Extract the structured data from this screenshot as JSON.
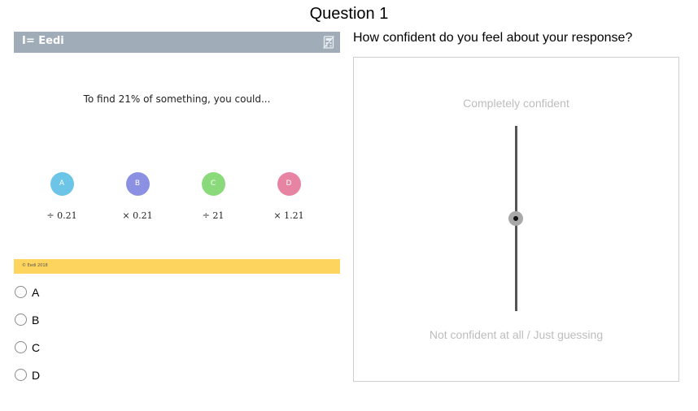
{
  "question_title": "Question 1",
  "card": {
    "brand": "I= Eedi",
    "header_icon": "calculator-crossed-icon",
    "prompt": "To find 21% of something, you could...",
    "options": [
      {
        "letter": "A",
        "expression": "÷ 0.21",
        "color": "#6cc4e6"
      },
      {
        "letter": "B",
        "expression": "× 0.21",
        "color": "#8b90e3"
      },
      {
        "letter": "C",
        "expression": "÷ 21",
        "color": "#8ad97a"
      },
      {
        "letter": "D",
        "expression": "× 1.21",
        "color": "#e784a4"
      }
    ],
    "footer_text": "© Eedi 2018",
    "header_color": "#a0acb8",
    "footer_color": "#fdd45e"
  },
  "answers": [
    {
      "label": "A"
    },
    {
      "label": "B"
    },
    {
      "label": "C"
    },
    {
      "label": "D"
    }
  ],
  "confidence": {
    "question": "How confident do you feel about your response?",
    "top_label": "Completely confident",
    "bottom_label": "Not confident at all / Just guessing",
    "slider_value": 0.5
  }
}
